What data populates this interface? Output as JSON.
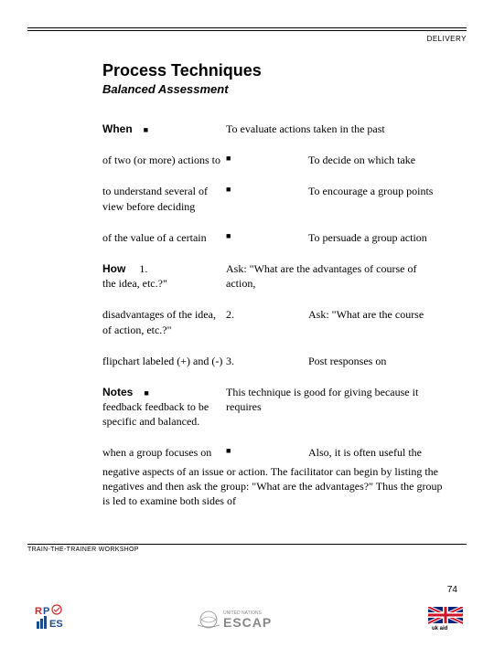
{
  "header": {
    "label": "DELIVERY"
  },
  "title": "Process Techniques",
  "subtitle": "Balanced Assessment",
  "rows": [
    {
      "leftLabel": "When",
      "leftBullet": "■",
      "leftText": "",
      "rightFull": "To evaluate actions taken in the past"
    },
    {
      "leftText": "of two (or more) actions to",
      "rightBullet": "■",
      "rightText": "To decide on which take"
    },
    {
      "leftText": "to understand several of view before deciding",
      "rightBullet": "■",
      "rightText": "To encourage a group points"
    },
    {
      "leftText": "of the value of a certain",
      "rightBullet": "■",
      "rightText": "To persuade a group action"
    },
    {
      "leftLabel": "How",
      "leftNum": "1.",
      "leftText": "the idea, etc.?\"",
      "rightFull": "Ask: \"What are the advantages of course of action,"
    },
    {
      "leftText": "disadvantages of the idea, of action, etc.?\"",
      "rightNum": "2.",
      "rightText": "Ask: \"What are the course"
    },
    {
      "leftText": "flipchart labeled (+) and (-)",
      "rightNum": "3.",
      "rightText": "Post responses on"
    },
    {
      "leftLabel": "Notes",
      "leftBullet": "■",
      "leftText": "feedback feedback to be specific and balanced.",
      "rightFull": "This technique is good for giving because it requires"
    },
    {
      "leftText": "when a group focuses on",
      "rightBullet": "■",
      "rightText": "Also, it is often useful the"
    }
  ],
  "overflow": "negative aspects of an issue or action. The facilitator can begin by listing the negatives and then ask the group: \"What are the advantages?\" Thus the group is led to examine both sides of",
  "footer": {
    "left": "TRAIN-THE-TRAINER WORKSHOP",
    "pageNum": "74"
  },
  "colors": {
    "ink": "#000000",
    "bg": "#ffffff",
    "ukRed": "#cf142b",
    "ukBlue": "#00247d",
    "rpRed": "#d62828",
    "rpBlue": "#1d4e89",
    "unBlue": "#4a90a4"
  }
}
